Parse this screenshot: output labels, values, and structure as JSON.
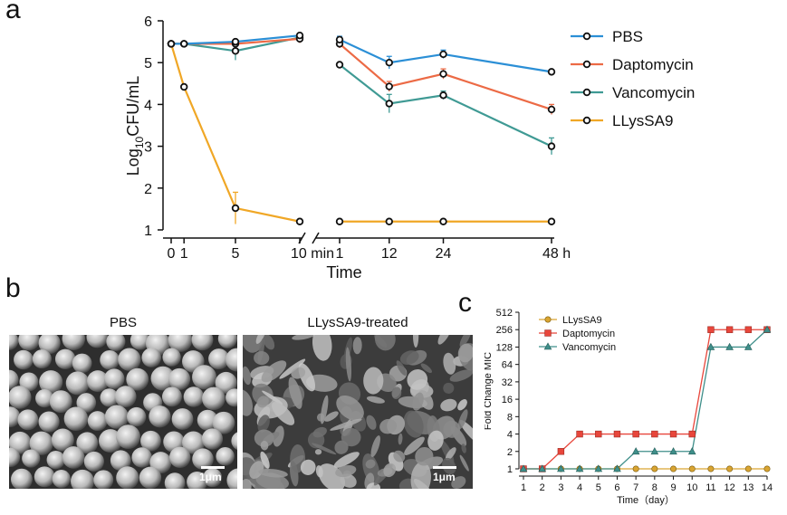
{
  "panel_labels": {
    "a": "a",
    "b": "b",
    "c": "c"
  },
  "colors": {
    "PBS": "#2b8fd6",
    "Daptomycin": "#ec6a45",
    "Vancomycin": "#3f9a94",
    "LLysSA9": "#f0a726",
    "fig_c_LLysSA9": "#d9a431",
    "fig_c_Daptomycin": "#e8463b",
    "fig_c_Vancomycin": "#3f8f8a"
  },
  "chart_data": [
    {
      "type": "line",
      "panel": "a",
      "title": "",
      "xlabel": "Time",
      "ylabel_main": "Log",
      "ylabel_sub": "10",
      "ylabel_tail": "CFU/mL",
      "ylim": [
        1,
        6
      ],
      "yticks": [
        "1",
        "2",
        "3",
        "4",
        "5",
        "6"
      ],
      "segment_left": {
        "unit": "min",
        "xlim": [
          0,
          10
        ],
        "ticks": [
          0,
          1,
          5,
          10
        ],
        "tick_labels": [
          "0",
          "1",
          "5",
          "10 min"
        ]
      },
      "segment_right": {
        "unit": "h",
        "xlim": [
          1,
          48
        ],
        "ticks": [
          1,
          12,
          24,
          48
        ],
        "tick_labels": [
          "1",
          "12",
          "24",
          "48 h"
        ]
      },
      "series": [
        {
          "name": "PBS",
          "left": [
            [
              0,
              5.45
            ],
            [
              1,
              5.45
            ],
            [
              5,
              5.5
            ],
            [
              10,
              5.65
            ]
          ],
          "right": [
            [
              1,
              5.55
            ],
            [
              12,
              5.0
            ],
            [
              24,
              5.2
            ],
            [
              48,
              4.78
            ]
          ],
          "err_left": [
            0,
            0.05,
            0.05,
            0.05
          ],
          "err_right": [
            0.08,
            0.15,
            0.1,
            0.05
          ]
        },
        {
          "name": "Daptomycin",
          "left": [
            [
              0,
              5.45
            ],
            [
              1,
              5.45
            ],
            [
              5,
              5.45
            ],
            [
              10,
              5.57
            ]
          ],
          "right": [
            [
              1,
              5.45
            ],
            [
              12,
              4.43
            ],
            [
              24,
              4.73
            ],
            [
              48,
              3.88
            ]
          ],
          "err_left": [
            0,
            0.05,
            0.05,
            0.1
          ],
          "err_right": [
            0.1,
            0.12,
            0.12,
            0.12
          ]
        },
        {
          "name": "Vancomycin",
          "left": [
            [
              0,
              5.45
            ],
            [
              1,
              5.45
            ],
            [
              5,
              5.28
            ],
            [
              10,
              5.6
            ]
          ],
          "right": [
            [
              1,
              4.95
            ],
            [
              12,
              4.02
            ],
            [
              24,
              4.22
            ],
            [
              48,
              3.0
            ]
          ],
          "err_left": [
            0,
            0.05,
            0.22,
            0.05
          ],
          "err_right": [
            0.05,
            0.22,
            0.1,
            0.2
          ]
        },
        {
          "name": "LLysSA9",
          "left": [
            [
              0,
              5.45
            ],
            [
              1,
              4.42
            ],
            [
              5,
              1.52
            ],
            [
              10,
              1.2
            ]
          ],
          "right": [
            [
              1,
              1.2
            ],
            [
              12,
              1.2
            ],
            [
              24,
              1.2
            ],
            [
              48,
              1.2
            ]
          ],
          "err_left": [
            0,
            0.05,
            0.38,
            0.02
          ],
          "err_right": [
            0.02,
            0.02,
            0.02,
            0.02
          ]
        }
      ],
      "legend": [
        "PBS",
        "Daptomycin",
        "Vancomycin",
        "LLysSA9"
      ],
      "legend_position": "right"
    },
    {
      "type": "line",
      "panel": "c",
      "xlabel": "Time（day）",
      "ylabel": "Fold Change MIC",
      "x": [
        1,
        2,
        3,
        4,
        5,
        6,
        7,
        8,
        9,
        10,
        11,
        12,
        13,
        14
      ],
      "xtick_labels": [
        "1",
        "2",
        "3",
        "4",
        "5",
        "6",
        "7",
        "8",
        "9",
        "10",
        "11",
        "12",
        "13",
        "14"
      ],
      "yscale": "log2",
      "yticks": [
        1,
        2,
        4,
        8,
        16,
        32,
        64,
        128,
        256,
        512
      ],
      "ytick_labels": [
        "1",
        "2",
        "4",
        "8",
        "16",
        "32",
        "64",
        "128",
        "256",
        "512"
      ],
      "ylim": [
        1,
        512
      ],
      "series": [
        {
          "name": "LLysSA9",
          "marker": "circle",
          "values": [
            1,
            1,
            1,
            1,
            1,
            1,
            1,
            1,
            1,
            1,
            1,
            1,
            1,
            1
          ]
        },
        {
          "name": "Daptomycin",
          "marker": "square",
          "values": [
            1,
            1,
            2,
            4,
            4,
            4,
            4,
            4,
            4,
            4,
            256,
            256,
            256,
            256
          ]
        },
        {
          "name": "Vancomycin",
          "marker": "triangle",
          "values": [
            1,
            1,
            1,
            1,
            1,
            1,
            2,
            2,
            2,
            2,
            128,
            128,
            128,
            256
          ]
        }
      ],
      "legend": [
        "LLysSA9",
        "Daptomycin",
        "Vancomycin"
      ],
      "legend_position": "top-left"
    }
  ],
  "panel_b": {
    "left_title": "PBS",
    "right_title": "LLysSA9-treated",
    "scale_label": "1μm"
  }
}
